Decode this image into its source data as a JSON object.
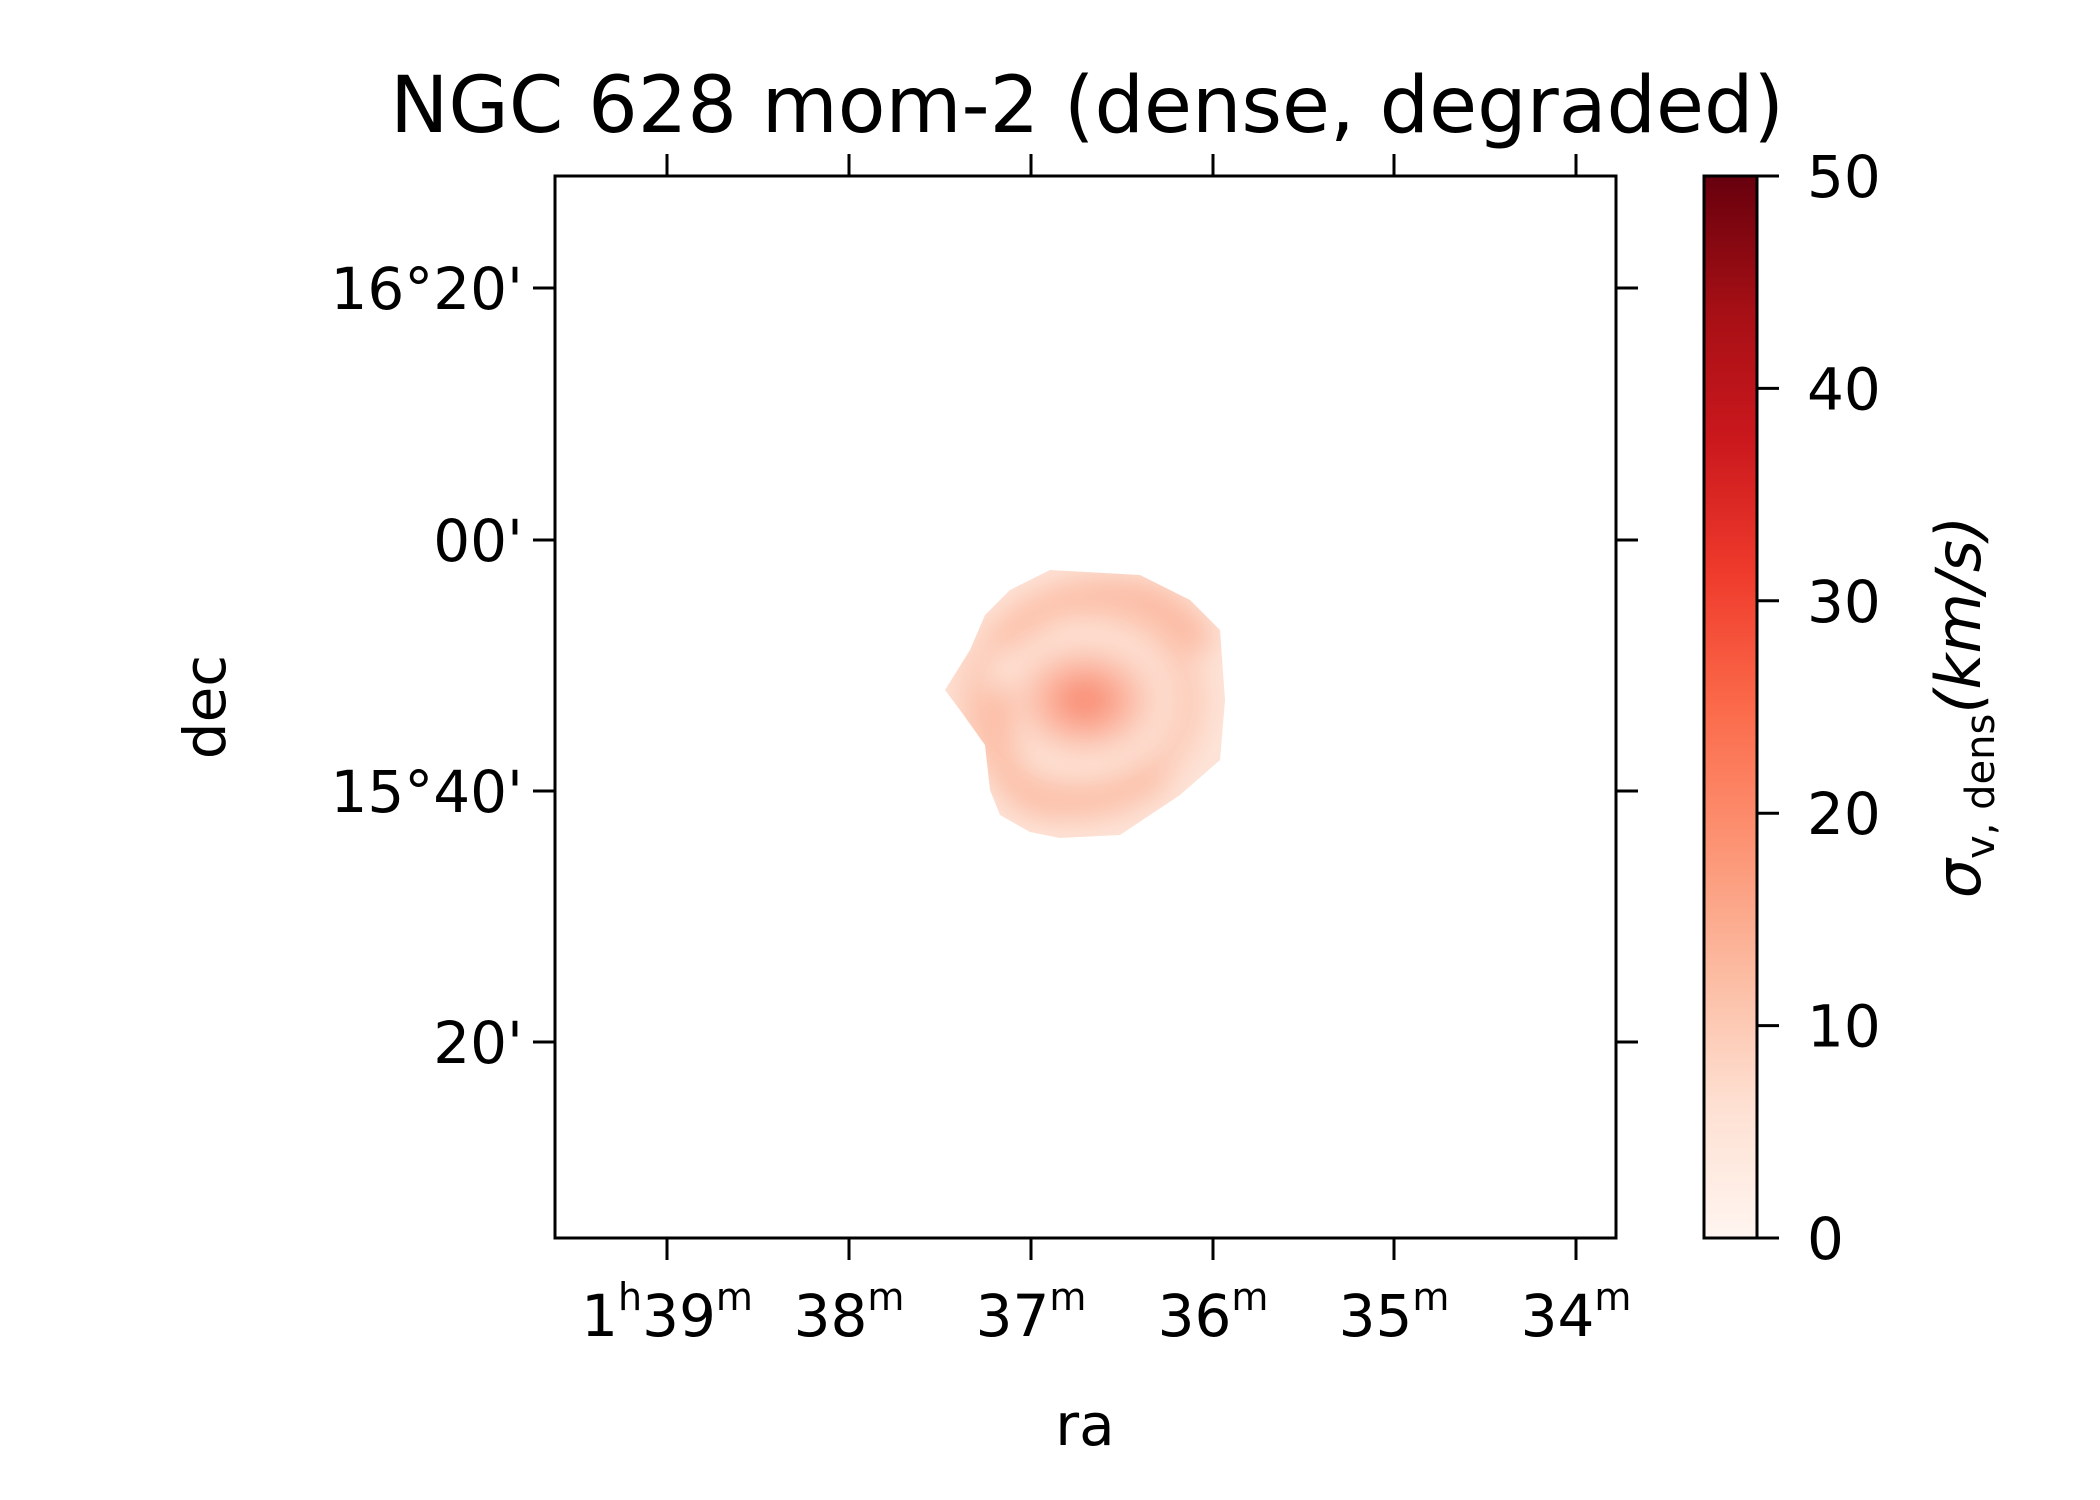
{
  "chart_data": {
    "type": "heatmap",
    "title": "NGC 628 mom-2 (dense, degraded)",
    "xlabel": "ra",
    "ylabel": "dec",
    "x_ticks": [
      {
        "base": "1",
        "base_sup": "h",
        "value": "39",
        "unit": "m"
      },
      {
        "base": "",
        "base_sup": "",
        "value": "38",
        "unit": "m"
      },
      {
        "base": "",
        "base_sup": "",
        "value": "37",
        "unit": "m"
      },
      {
        "base": "",
        "base_sup": "",
        "value": "36",
        "unit": "m"
      },
      {
        "base": "",
        "base_sup": "",
        "value": "35",
        "unit": "m"
      },
      {
        "base": "",
        "base_sup": "",
        "value": "34",
        "unit": "m"
      }
    ],
    "y_ticks": [
      "16°20'",
      "00'",
      "15°40'",
      "20'"
    ],
    "colorbar": {
      "colormap": "Reds",
      "vmin": 0,
      "vmax": 50,
      "ticks": [
        "0",
        "10",
        "20",
        "30",
        "40",
        "50"
      ],
      "label_symbol": "σ",
      "label_subscript": "v, dens",
      "label_unit": "(km/s)",
      "colors": [
        "#fff5f0",
        "#fee0d2",
        "#fcbba1",
        "#fc9272",
        "#fb6a4a",
        "#ef3b2c",
        "#cb181d",
        "#a50f15",
        "#67000d"
      ]
    },
    "emission": {
      "center_ra": "1h36m40s",
      "center_dec": "15°47'",
      "peak_value": 18,
      "typical_value": 7
    }
  }
}
